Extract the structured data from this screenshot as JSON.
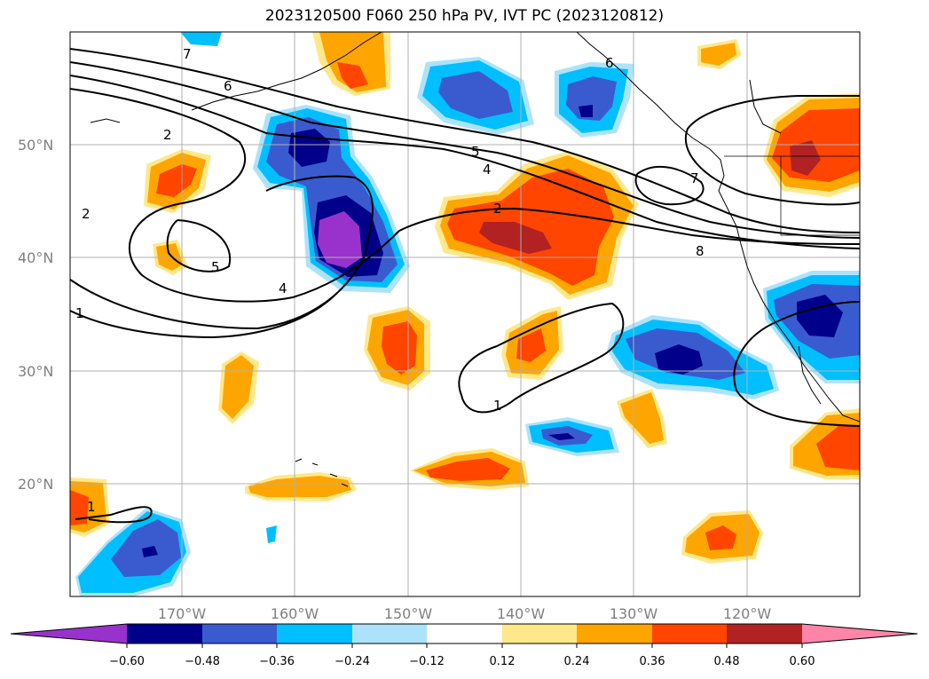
{
  "title": "2023120500 F060 250 hPa PV, IVT PC (2023120812)",
  "map": {
    "lat_labels": [
      "50°N",
      "40°N",
      "30°N",
      "20°N"
    ],
    "lon_labels": [
      "170°W",
      "160°W",
      "150°W",
      "140°W",
      "130°W",
      "120°W"
    ],
    "contour_labels": [
      "7",
      "6",
      "2",
      "2",
      "5",
      "4",
      "2",
      "4",
      "5",
      "1",
      "1",
      "1",
      "6",
      "7",
      "8"
    ]
  },
  "colorbar": {
    "ticks": [
      "−0.60",
      "−0.48",
      "−0.36",
      "−0.24",
      "−0.12",
      "0.12",
      "0.24",
      "0.36",
      "0.48",
      "0.60"
    ],
    "colors": [
      "#9932cc",
      "#00008b",
      "#3a5bcf",
      "#00bfff",
      "#ade3fa",
      "#ffffff",
      "#ffe88a",
      "#ffa500",
      "#ff4500",
      "#b22222",
      "#ff85a8"
    ]
  }
}
